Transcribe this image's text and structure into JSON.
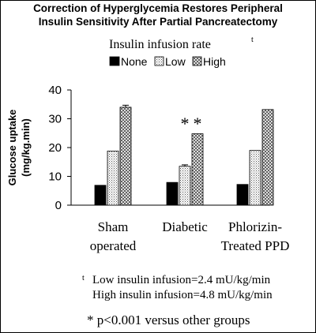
{
  "chart_data": {
    "type": "bar",
    "title_lines": [
      "Correction of Hyperglycemia Restores Peripheral",
      "Insulin Sensitivity After Partial Pancreatectomy"
    ],
    "legend_title": "Insulin infusion rate",
    "legend_title_marker": "t",
    "legend_placement": "top",
    "ylabel_lines": [
      "Glucose uptake",
      "(mg/kg.min)"
    ],
    "xlabel": "",
    "ylim": [
      0,
      40
    ],
    "yticks": [
      "0",
      "10",
      "20",
      "30",
      "40"
    ],
    "grid": false,
    "categories": [
      {
        "lines": [
          "Sham",
          "operated"
        ]
      },
      {
        "lines": [
          "Diabetic"
        ]
      },
      {
        "lines": [
          "Phlorizin-",
          "Treated PPD"
        ]
      }
    ],
    "series": [
      {
        "name": "None",
        "color": "#000000",
        "pattern": "solid",
        "values": [
          6.9,
          7.9,
          7.2
        ]
      },
      {
        "name": "Low",
        "color": "#ffffff",
        "pattern": "dots",
        "values": [
          18.8,
          13.5,
          19.0
        ]
      },
      {
        "name": "High",
        "color": "#ffffff",
        "pattern": "crosshatch",
        "values": [
          34.0,
          24.8,
          33.2
        ]
      }
    ],
    "error_bars": [
      null,
      [
        null,
        0.5,
        null
      ],
      [
        0.7,
        null,
        null
      ]
    ],
    "annotations": [
      {
        "text": "*",
        "category": 1,
        "series": 1
      },
      {
        "text": "*",
        "category": 1,
        "series": 2
      }
    ]
  },
  "footnotes": {
    "marker": "t",
    "line1": "Low insulin infusion=2.4 mU/kg/min",
    "line2": "High insulin infusion=4.8 mU/kg/min",
    "significance": "* p<0.001 versus other groups"
  }
}
